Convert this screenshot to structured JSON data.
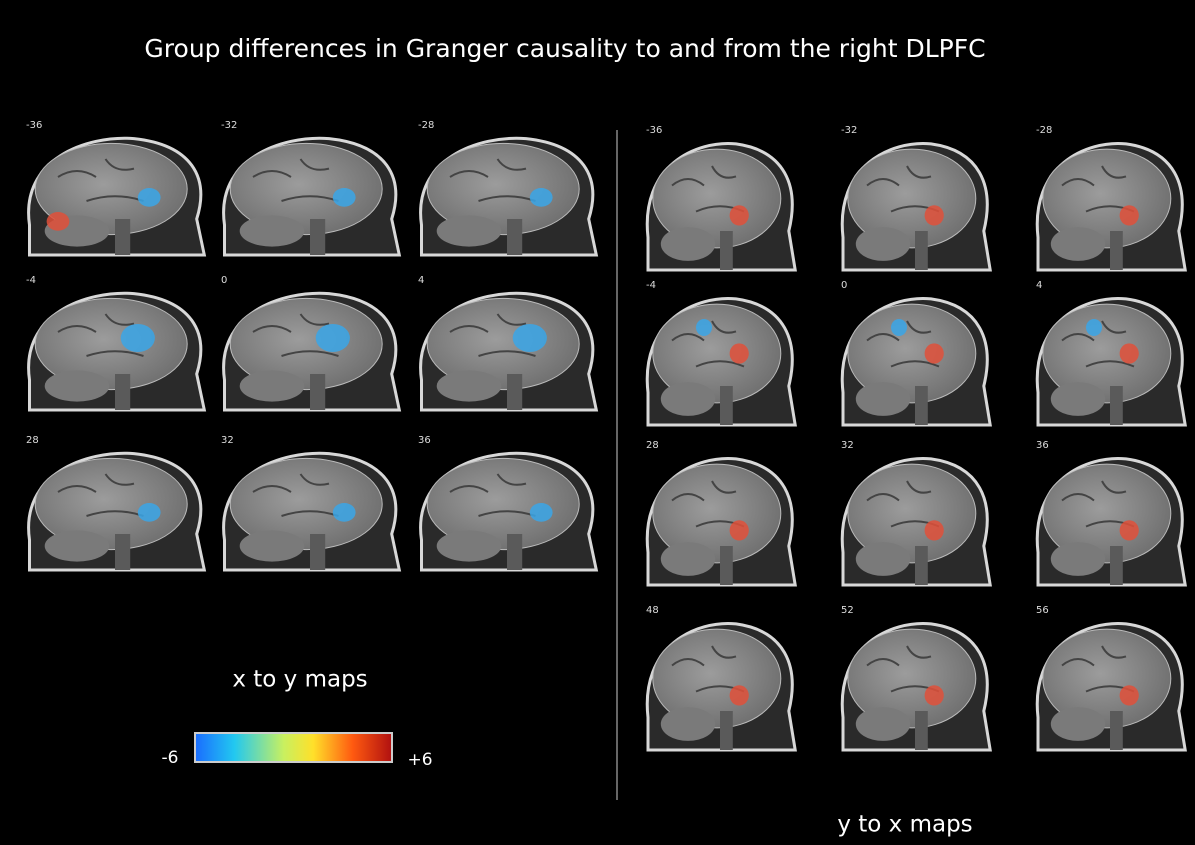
{
  "title": "Group differences in Granger causality to and from the right DLPFC",
  "left_panel": {
    "caption": "x to y maps",
    "slices": [
      "-36",
      "-32",
      "-28",
      "-4",
      "0",
      "4",
      "28",
      "32",
      "36"
    ]
  },
  "right_panel": {
    "caption": "y to x maps",
    "slices": [
      "-36",
      "-32",
      "-28",
      "-4",
      "0",
      "4",
      "28",
      "32",
      "36",
      "48",
      "52",
      "56"
    ]
  },
  "colorbar": {
    "min_label": "-6",
    "max_label": "+6"
  }
}
